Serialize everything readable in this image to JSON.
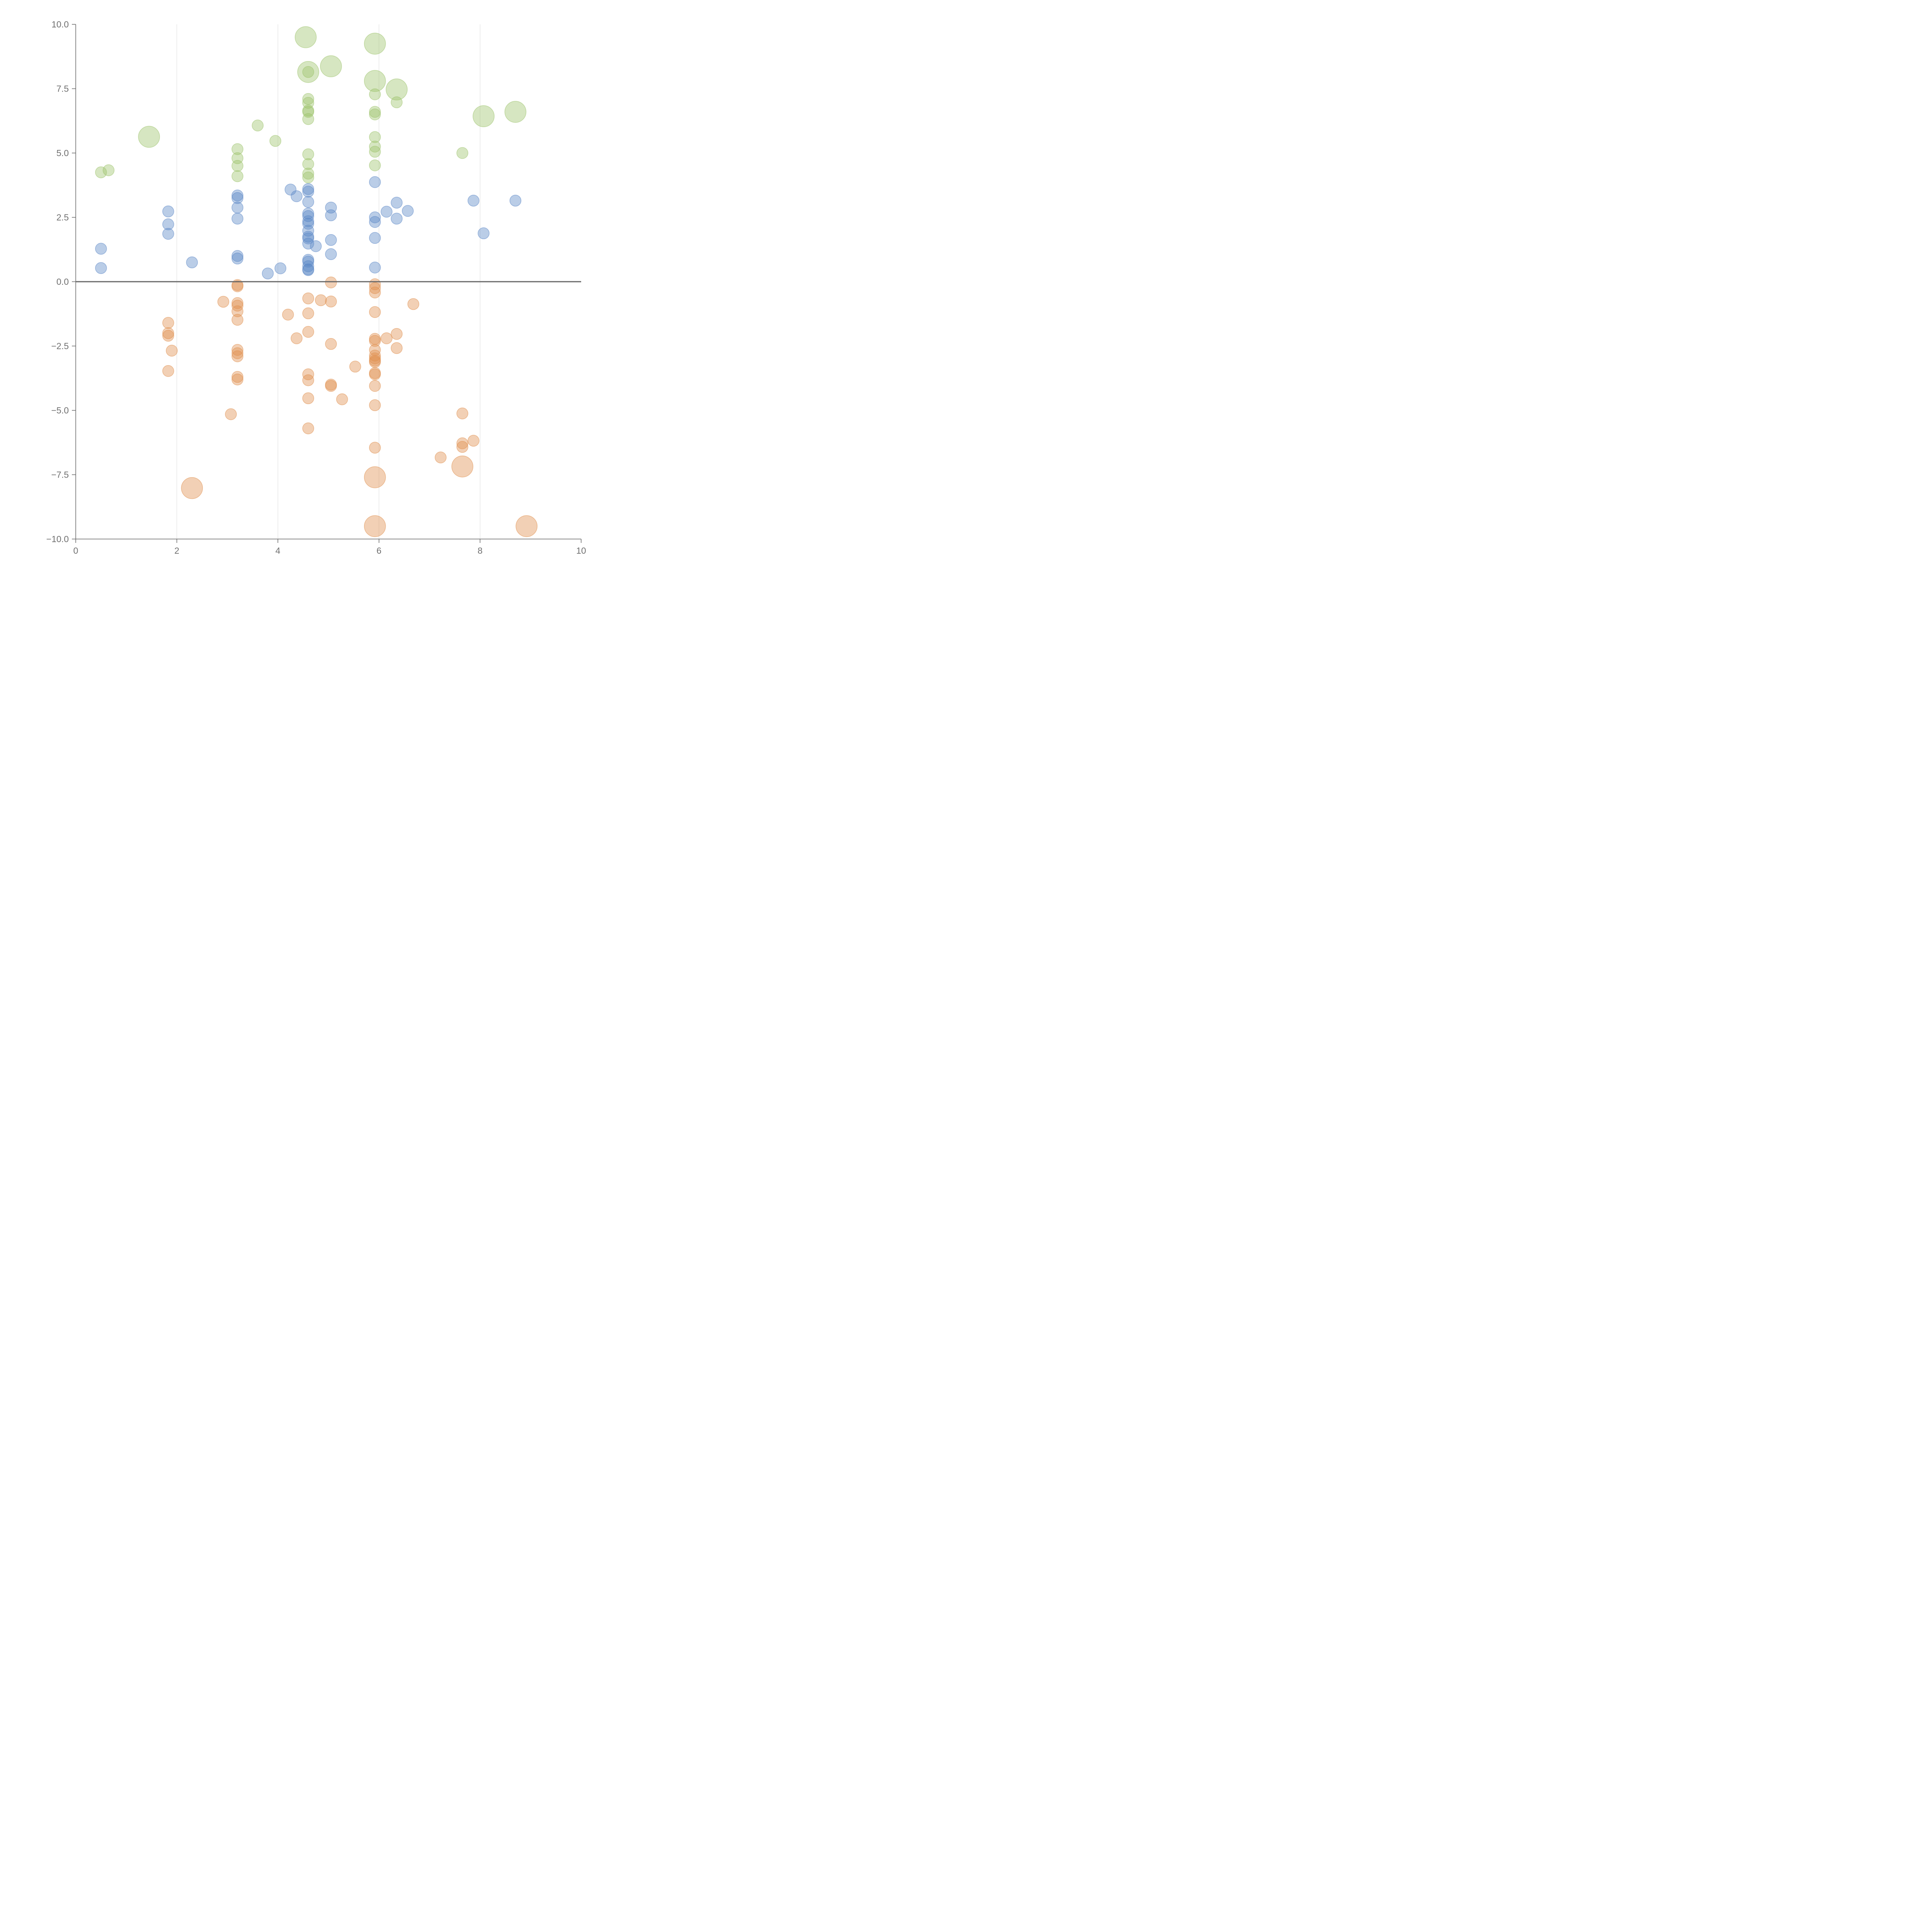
{
  "chart_data": {
    "type": "scatter",
    "title": "",
    "xlabel": "",
    "ylabel": "",
    "xlim": [
      0,
      10
    ],
    "ylim": [
      -10,
      10
    ],
    "x_ticks": [
      0,
      2,
      4,
      6,
      8,
      10
    ],
    "x_tick_labels": [
      "0",
      "2",
      "4",
      "6",
      "8",
      "10"
    ],
    "y_ticks": [
      10,
      7.5,
      5,
      2.5,
      0,
      -2.5,
      -5,
      -7.5,
      -10
    ],
    "y_tick_labels": [
      "10.0",
      "7.5",
      "5.0",
      "2.5",
      "0.0",
      "−2.5",
      "−5.0",
      "−7.5",
      "−10.0"
    ],
    "vertical_grid_x": [
      2,
      4,
      6,
      8
    ],
    "reference_line_y": 0,
    "colors": {
      "green": "#9dc36b",
      "blue": "#5b87c6",
      "orange": "#e0904e"
    },
    "series": [
      {
        "name": "green",
        "color": "#9dc36b",
        "points": [
          {
            "x": 0.5,
            "y": 4.25,
            "s": 1
          },
          {
            "x": 0.65,
            "y": 4.33,
            "s": 1
          },
          {
            "x": 1.45,
            "y": 5.63,
            "s": 2
          },
          {
            "x": 3.2,
            "y": 5.15,
            "s": 1
          },
          {
            "x": 3.2,
            "y": 4.8,
            "s": 1
          },
          {
            "x": 3.2,
            "y": 4.5,
            "s": 1
          },
          {
            "x": 3.2,
            "y": 4.1,
            "s": 1
          },
          {
            "x": 3.6,
            "y": 6.07,
            "s": 1
          },
          {
            "x": 3.95,
            "y": 5.47,
            "s": 1
          },
          {
            "x": 4.55,
            "y": 9.5,
            "s": 2
          },
          {
            "x": 4.6,
            "y": 8.15,
            "s": 2
          },
          {
            "x": 4.6,
            "y": 8.15,
            "s": 1
          },
          {
            "x": 4.6,
            "y": 7.1,
            "s": 1
          },
          {
            "x": 4.6,
            "y": 6.95,
            "s": 1
          },
          {
            "x": 4.6,
            "y": 6.65,
            "s": 1
          },
          {
            "x": 4.6,
            "y": 6.6,
            "s": 1
          },
          {
            "x": 4.6,
            "y": 6.32,
            "s": 1
          },
          {
            "x": 4.6,
            "y": 4.95,
            "s": 1
          },
          {
            "x": 4.6,
            "y": 4.57,
            "s": 1
          },
          {
            "x": 4.6,
            "y": 4.2,
            "s": 1
          },
          {
            "x": 4.6,
            "y": 4.05,
            "s": 1
          },
          {
            "x": 5.05,
            "y": 8.37,
            "s": 2
          },
          {
            "x": 5.92,
            "y": 9.25,
            "s": 2
          },
          {
            "x": 5.92,
            "y": 7.8,
            "s": 2
          },
          {
            "x": 5.92,
            "y": 7.28,
            "s": 1
          },
          {
            "x": 5.92,
            "y": 6.6,
            "s": 1
          },
          {
            "x": 5.92,
            "y": 6.5,
            "s": 1
          },
          {
            "x": 5.92,
            "y": 5.62,
            "s": 1
          },
          {
            "x": 5.92,
            "y": 5.25,
            "s": 1
          },
          {
            "x": 5.92,
            "y": 5.05,
            "s": 1
          },
          {
            "x": 5.92,
            "y": 4.52,
            "s": 1
          },
          {
            "x": 6.35,
            "y": 7.47,
            "s": 2
          },
          {
            "x": 6.35,
            "y": 6.97,
            "s": 1
          },
          {
            "x": 7.65,
            "y": 5.0,
            "s": 1
          },
          {
            "x": 8.07,
            "y": 6.43,
            "s": 2
          },
          {
            "x": 8.7,
            "y": 6.6,
            "s": 2
          }
        ]
      },
      {
        "name": "blue",
        "color": "#5b87c6",
        "points": [
          {
            "x": 0.5,
            "y": 1.28,
            "s": 1
          },
          {
            "x": 0.5,
            "y": 0.53,
            "s": 1
          },
          {
            "x": 1.83,
            "y": 2.73,
            "s": 1
          },
          {
            "x": 1.83,
            "y": 2.23,
            "s": 1
          },
          {
            "x": 1.83,
            "y": 1.86,
            "s": 1
          },
          {
            "x": 2.3,
            "y": 0.75,
            "s": 1
          },
          {
            "x": 3.2,
            "y": 3.35,
            "s": 1
          },
          {
            "x": 3.2,
            "y": 3.25,
            "s": 1
          },
          {
            "x": 3.2,
            "y": 2.88,
            "s": 1
          },
          {
            "x": 3.2,
            "y": 2.45,
            "s": 1
          },
          {
            "x": 3.2,
            "y": 1.0,
            "s": 1
          },
          {
            "x": 3.2,
            "y": 0.9,
            "s": 1
          },
          {
            "x": 3.8,
            "y": 0.32,
            "s": 1
          },
          {
            "x": 4.05,
            "y": 0.52,
            "s": 1
          },
          {
            "x": 4.25,
            "y": 3.58,
            "s": 1
          },
          {
            "x": 4.37,
            "y": 3.32,
            "s": 1
          },
          {
            "x": 4.6,
            "y": 3.6,
            "s": 1
          },
          {
            "x": 4.6,
            "y": 3.5,
            "s": 1
          },
          {
            "x": 4.6,
            "y": 3.1,
            "s": 1
          },
          {
            "x": 4.6,
            "y": 2.65,
            "s": 1
          },
          {
            "x": 4.6,
            "y": 2.55,
            "s": 1
          },
          {
            "x": 4.6,
            "y": 2.35,
            "s": 1
          },
          {
            "x": 4.6,
            "y": 2.25,
            "s": 1
          },
          {
            "x": 4.6,
            "y": 1.98,
            "s": 1
          },
          {
            "x": 4.6,
            "y": 1.75,
            "s": 1
          },
          {
            "x": 4.6,
            "y": 1.68,
            "s": 1
          },
          {
            "x": 4.6,
            "y": 1.48,
            "s": 1
          },
          {
            "x": 4.6,
            "y": 0.85,
            "s": 1
          },
          {
            "x": 4.6,
            "y": 0.78,
            "s": 1
          },
          {
            "x": 4.6,
            "y": 0.6,
            "s": 1
          },
          {
            "x": 4.6,
            "y": 0.48,
            "s": 1
          },
          {
            "x": 4.6,
            "y": 0.45,
            "s": 1
          },
          {
            "x": 4.75,
            "y": 1.38,
            "s": 1
          },
          {
            "x": 5.05,
            "y": 2.88,
            "s": 1
          },
          {
            "x": 5.05,
            "y": 2.58,
            "s": 1
          },
          {
            "x": 5.05,
            "y": 1.62,
            "s": 1
          },
          {
            "x": 5.05,
            "y": 1.07,
            "s": 1
          },
          {
            "x": 5.92,
            "y": 3.87,
            "s": 1
          },
          {
            "x": 5.92,
            "y": 2.5,
            "s": 1
          },
          {
            "x": 5.92,
            "y": 2.32,
            "s": 1
          },
          {
            "x": 5.92,
            "y": 1.7,
            "s": 1
          },
          {
            "x": 5.92,
            "y": 0.55,
            "s": 1
          },
          {
            "x": 6.15,
            "y": 2.72,
            "s": 1
          },
          {
            "x": 6.35,
            "y": 3.07,
            "s": 1
          },
          {
            "x": 6.35,
            "y": 2.45,
            "s": 1
          },
          {
            "x": 6.57,
            "y": 2.75,
            "s": 1
          },
          {
            "x": 7.87,
            "y": 3.15,
            "s": 1
          },
          {
            "x": 8.07,
            "y": 1.88,
            "s": 1
          },
          {
            "x": 8.7,
            "y": 3.15,
            "s": 1
          }
        ]
      },
      {
        "name": "orange",
        "color": "#e0904e",
        "points": [
          {
            "x": 1.83,
            "y": -1.6,
            "s": 1
          },
          {
            "x": 1.83,
            "y": -2.0,
            "s": 1
          },
          {
            "x": 1.83,
            "y": -2.1,
            "s": 1
          },
          {
            "x": 1.9,
            "y": -2.68,
            "s": 1
          },
          {
            "x": 1.83,
            "y": -3.47,
            "s": 1
          },
          {
            "x": 2.3,
            "y": -8.02,
            "s": 2
          },
          {
            "x": 2.92,
            "y": -0.78,
            "s": 1
          },
          {
            "x": 3.07,
            "y": -5.15,
            "s": 1
          },
          {
            "x": 3.2,
            "y": -0.13,
            "s": 1
          },
          {
            "x": 3.2,
            "y": -0.18,
            "s": 1
          },
          {
            "x": 3.2,
            "y": -0.83,
            "s": 1
          },
          {
            "x": 3.2,
            "y": -0.93,
            "s": 1
          },
          {
            "x": 3.2,
            "y": -1.15,
            "s": 1
          },
          {
            "x": 3.2,
            "y": -1.48,
            "s": 1
          },
          {
            "x": 3.2,
            "y": -2.65,
            "s": 1
          },
          {
            "x": 3.2,
            "y": -2.78,
            "s": 1
          },
          {
            "x": 3.2,
            "y": -2.9,
            "s": 1
          },
          {
            "x": 3.2,
            "y": -3.7,
            "s": 1
          },
          {
            "x": 3.2,
            "y": -3.8,
            "s": 1
          },
          {
            "x": 4.2,
            "y": -1.28,
            "s": 1
          },
          {
            "x": 4.37,
            "y": -2.2,
            "s": 1
          },
          {
            "x": 4.6,
            "y": -0.65,
            "s": 1
          },
          {
            "x": 4.6,
            "y": -1.23,
            "s": 1
          },
          {
            "x": 4.6,
            "y": -1.95,
            "s": 1
          },
          {
            "x": 4.6,
            "y": -3.6,
            "s": 1
          },
          {
            "x": 4.6,
            "y": -3.83,
            "s": 1
          },
          {
            "x": 4.6,
            "y": -4.53,
            "s": 1
          },
          {
            "x": 4.6,
            "y": -5.7,
            "s": 1
          },
          {
            "x": 4.85,
            "y": -0.72,
            "s": 1
          },
          {
            "x": 5.05,
            "y": -0.03,
            "s": 1
          },
          {
            "x": 5.05,
            "y": -0.77,
            "s": 1
          },
          {
            "x": 5.05,
            "y": -2.42,
            "s": 1
          },
          {
            "x": 5.05,
            "y": -4.0,
            "s": 1
          },
          {
            "x": 5.05,
            "y": -4.05,
            "s": 1
          },
          {
            "x": 5.27,
            "y": -4.57,
            "s": 1
          },
          {
            "x": 5.53,
            "y": -3.3,
            "s": 1
          },
          {
            "x": 5.92,
            "y": -0.1,
            "s": 1
          },
          {
            "x": 5.92,
            "y": -0.25,
            "s": 1
          },
          {
            "x": 5.92,
            "y": -0.42,
            "s": 1
          },
          {
            "x": 5.92,
            "y": -1.18,
            "s": 1
          },
          {
            "x": 5.92,
            "y": -2.22,
            "s": 1
          },
          {
            "x": 5.92,
            "y": -2.3,
            "s": 1
          },
          {
            "x": 5.92,
            "y": -2.65,
            "s": 1
          },
          {
            "x": 5.92,
            "y": -2.87,
            "s": 1
          },
          {
            "x": 5.92,
            "y": -2.98,
            "s": 1
          },
          {
            "x": 5.92,
            "y": -3.07,
            "s": 1
          },
          {
            "x": 5.92,
            "y": -3.12,
            "s": 1
          },
          {
            "x": 5.92,
            "y": -3.55,
            "s": 1
          },
          {
            "x": 5.92,
            "y": -3.6,
            "s": 1
          },
          {
            "x": 5.92,
            "y": -4.05,
            "s": 1
          },
          {
            "x": 5.92,
            "y": -4.8,
            "s": 1
          },
          {
            "x": 5.92,
            "y": -6.45,
            "s": 1
          },
          {
            "x": 5.92,
            "y": -7.6,
            "s": 2
          },
          {
            "x": 5.92,
            "y": -9.5,
            "s": 2
          },
          {
            "x": 6.15,
            "y": -2.2,
            "s": 1
          },
          {
            "x": 6.35,
            "y": -2.03,
            "s": 1
          },
          {
            "x": 6.35,
            "y": -2.58,
            "s": 1
          },
          {
            "x": 6.68,
            "y": -0.87,
            "s": 1
          },
          {
            "x": 7.22,
            "y": -6.83,
            "s": 1
          },
          {
            "x": 7.65,
            "y": -5.12,
            "s": 1
          },
          {
            "x": 7.65,
            "y": -6.28,
            "s": 1
          },
          {
            "x": 7.65,
            "y": -6.42,
            "s": 1
          },
          {
            "x": 7.65,
            "y": -7.18,
            "s": 2
          },
          {
            "x": 7.87,
            "y": -6.18,
            "s": 1
          },
          {
            "x": 8.92,
            "y": -9.5,
            "s": 2
          }
        ]
      }
    ]
  }
}
